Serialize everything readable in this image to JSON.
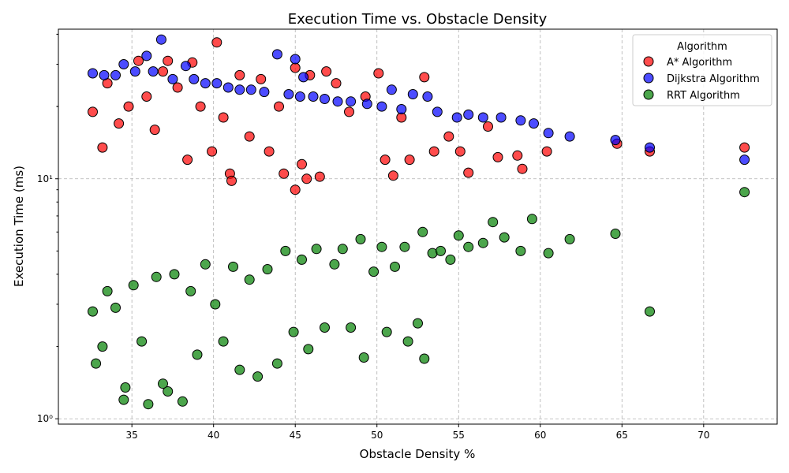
{
  "chart_data": {
    "type": "scatter",
    "title": "Execution Time vs. Obstacle Density",
    "xlabel": "Obstacle Density %",
    "ylabel": "Execution Time (ms)",
    "xlim": [
      30.5,
      74.5
    ],
    "ylim": [
      0.95,
      42
    ],
    "yscale": "log",
    "x_ticks": [
      35,
      40,
      45,
      50,
      55,
      60,
      65,
      70
    ],
    "y_ticks": [
      {
        "value": 1,
        "label": "10⁰"
      },
      {
        "value": 10,
        "label": "10¹"
      }
    ],
    "grid": true,
    "legend": {
      "title": "Algorithm",
      "placement": "top-right"
    },
    "series": [
      {
        "name": "A* Algorithm",
        "color": "#ff0000",
        "points": [
          [
            32.6,
            19
          ],
          [
            33.2,
            13.5
          ],
          [
            33.5,
            25
          ],
          [
            34.2,
            17
          ],
          [
            34.8,
            20
          ],
          [
            35.4,
            31
          ],
          [
            35.9,
            22
          ],
          [
            36.4,
            16
          ],
          [
            36.9,
            28
          ],
          [
            37.2,
            31
          ],
          [
            37.8,
            24
          ],
          [
            38.4,
            12
          ],
          [
            38.7,
            30.5
          ],
          [
            39.2,
            20
          ],
          [
            39.9,
            13
          ],
          [
            40.2,
            37
          ],
          [
            40.6,
            18
          ],
          [
            41.0,
            10.5
          ],
          [
            41.1,
            9.8
          ],
          [
            41.6,
            27
          ],
          [
            42.2,
            15
          ],
          [
            42.9,
            26
          ],
          [
            43.4,
            13
          ],
          [
            44.0,
            20
          ],
          [
            44.3,
            10.5
          ],
          [
            45.0,
            29
          ],
          [
            45.0,
            9
          ],
          [
            45.4,
            11.5
          ],
          [
            45.7,
            10
          ],
          [
            45.9,
            27
          ],
          [
            46.5,
            10.2
          ],
          [
            46.9,
            28
          ],
          [
            47.5,
            25
          ],
          [
            48.3,
            19
          ],
          [
            49.3,
            22
          ],
          [
            50.1,
            27.5
          ],
          [
            50.5,
            12
          ],
          [
            51.0,
            10.3
          ],
          [
            51.5,
            18
          ],
          [
            52.0,
            12
          ],
          [
            52.9,
            26.5
          ],
          [
            53.5,
            13
          ],
          [
            54.4,
            15
          ],
          [
            55.1,
            13
          ],
          [
            55.6,
            10.6
          ],
          [
            56.8,
            16.5
          ],
          [
            57.4,
            12.3
          ],
          [
            58.6,
            12.5
          ],
          [
            58.9,
            11
          ],
          [
            60.4,
            13
          ],
          [
            64.7,
            14
          ],
          [
            66.7,
            13
          ],
          [
            72.5,
            13.5
          ]
        ]
      },
      {
        "name": "Dijkstra Algorithm",
        "color": "#0000ff",
        "points": [
          [
            32.6,
            27.5
          ],
          [
            33.3,
            27
          ],
          [
            34.0,
            27
          ],
          [
            34.5,
            30
          ],
          [
            35.2,
            28
          ],
          [
            35.9,
            32.5
          ],
          [
            36.3,
            28
          ],
          [
            36.8,
            38
          ],
          [
            37.5,
            26
          ],
          [
            38.3,
            29.5
          ],
          [
            38.8,
            26
          ],
          [
            39.5,
            25
          ],
          [
            40.2,
            25
          ],
          [
            40.9,
            24
          ],
          [
            41.6,
            23.5
          ],
          [
            42.3,
            23.5
          ],
          [
            43.1,
            23
          ],
          [
            43.9,
            33
          ],
          [
            44.6,
            22.5
          ],
          [
            45.0,
            31.5
          ],
          [
            45.3,
            22
          ],
          [
            45.5,
            26.5
          ],
          [
            46.1,
            22
          ],
          [
            46.8,
            21.5
          ],
          [
            47.6,
            21
          ],
          [
            48.4,
            21
          ],
          [
            49.4,
            20.5
          ],
          [
            50.3,
            20
          ],
          [
            50.9,
            23.5
          ],
          [
            51.5,
            19.5
          ],
          [
            52.2,
            22.5
          ],
          [
            53.1,
            22
          ],
          [
            53.7,
            19
          ],
          [
            54.9,
            18
          ],
          [
            55.6,
            18.5
          ],
          [
            56.5,
            18
          ],
          [
            57.6,
            18
          ],
          [
            58.8,
            17.5
          ],
          [
            59.6,
            17
          ],
          [
            60.5,
            15.5
          ],
          [
            61.8,
            15
          ],
          [
            64.6,
            14.5
          ],
          [
            66.7,
            13.5
          ],
          [
            72.5,
            12
          ]
        ]
      },
      {
        "name": "RRT Algorithm",
        "color": "#008000",
        "points": [
          [
            32.6,
            2.8
          ],
          [
            32.8,
            1.7
          ],
          [
            33.2,
            2.0
          ],
          [
            33.5,
            3.4
          ],
          [
            34.0,
            2.9
          ],
          [
            34.5,
            1.2
          ],
          [
            34.6,
            1.35
          ],
          [
            35.1,
            3.6
          ],
          [
            35.6,
            2.1
          ],
          [
            36.0,
            1.15
          ],
          [
            36.5,
            3.9
          ],
          [
            36.9,
            1.4
          ],
          [
            37.2,
            1.3
          ],
          [
            37.6,
            4.0
          ],
          [
            38.1,
            1.18
          ],
          [
            38.6,
            3.4
          ],
          [
            39.0,
            1.85
          ],
          [
            39.5,
            4.4
          ],
          [
            40.1,
            3.0
          ],
          [
            40.6,
            2.1
          ],
          [
            41.2,
            4.3
          ],
          [
            41.6,
            1.6
          ],
          [
            42.2,
            3.8
          ],
          [
            42.7,
            1.5
          ],
          [
            43.3,
            4.2
          ],
          [
            43.9,
            1.7
          ],
          [
            44.4,
            5.0
          ],
          [
            44.9,
            2.3
          ],
          [
            45.4,
            4.6
          ],
          [
            45.8,
            1.95
          ],
          [
            46.3,
            5.1
          ],
          [
            46.8,
            2.4
          ],
          [
            47.4,
            4.4
          ],
          [
            47.9,
            5.1
          ],
          [
            48.4,
            2.4
          ],
          [
            49.0,
            5.6
          ],
          [
            49.2,
            1.8
          ],
          [
            49.8,
            4.1
          ],
          [
            50.3,
            5.2
          ],
          [
            50.6,
            2.3
          ],
          [
            51.1,
            4.3
          ],
          [
            51.7,
            5.2
          ],
          [
            51.9,
            2.1
          ],
          [
            52.5,
            2.5
          ],
          [
            52.8,
            6.0
          ],
          [
            52.9,
            1.78
          ],
          [
            53.4,
            4.9
          ],
          [
            53.9,
            5.0
          ],
          [
            54.5,
            4.6
          ],
          [
            55.0,
            5.8
          ],
          [
            55.6,
            5.2
          ],
          [
            56.5,
            5.4
          ],
          [
            57.1,
            6.6
          ],
          [
            57.8,
            5.7
          ],
          [
            58.8,
            5.0
          ],
          [
            59.5,
            6.8
          ],
          [
            60.5,
            4.9
          ],
          [
            61.8,
            5.6
          ],
          [
            64.6,
            5.9
          ],
          [
            66.7,
            2.8
          ],
          [
            72.5,
            8.8
          ]
        ]
      }
    ]
  }
}
